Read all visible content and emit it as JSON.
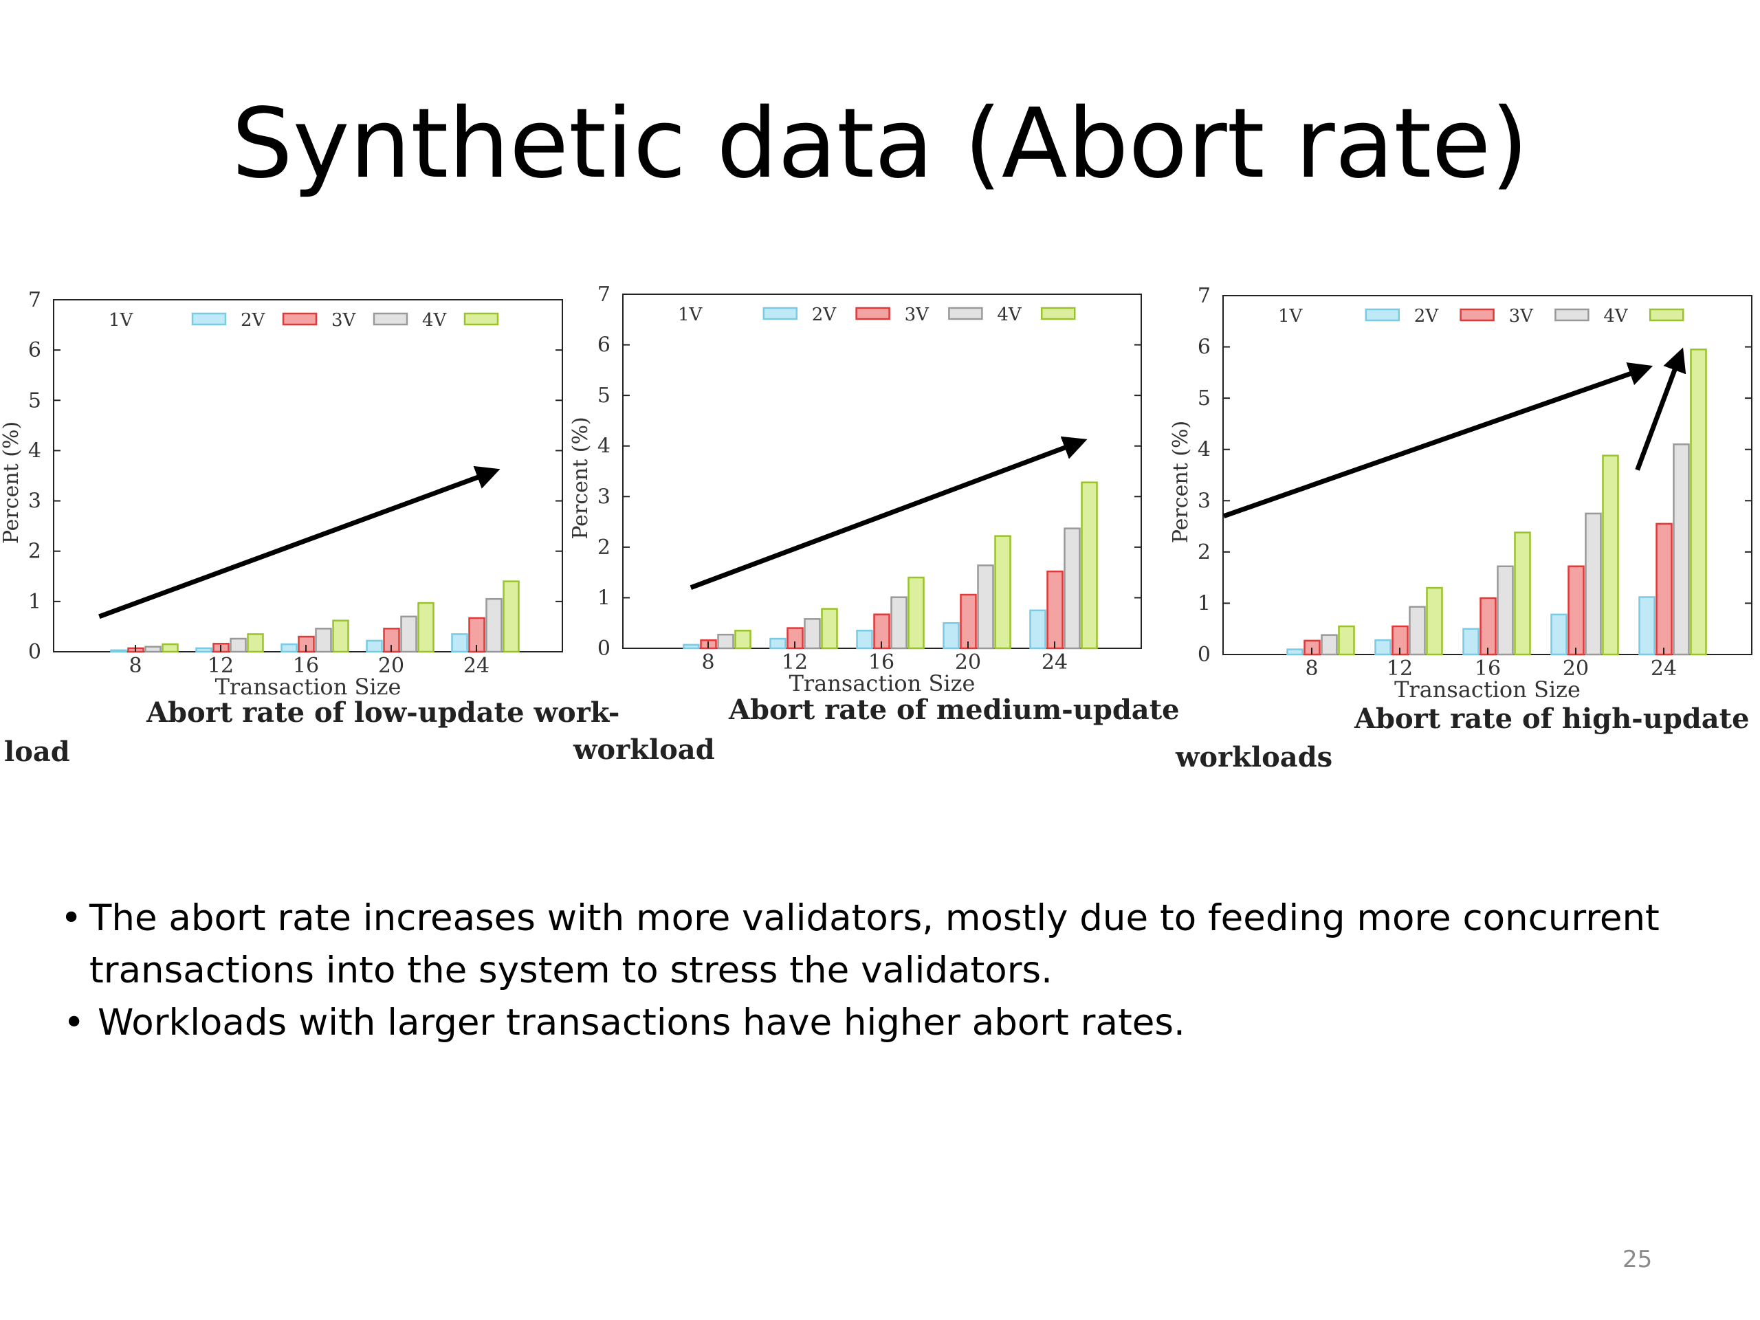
{
  "slide": {
    "title": "Synthetic data (Abort rate)",
    "page_number": "25"
  },
  "bullets": [
    {
      "marker": "•",
      "text": "The abort rate increases with more validators, mostly due to feeding more concurrent transactions into the system to stress the validators."
    },
    {
      "marker": "•",
      "text": "Workloads with larger transactions have higher abort rates."
    }
  ],
  "colors": {
    "1V": "#ffffff",
    "2V": "#bfe9f6",
    "3V": "#f4a3a3",
    "4V": "#e2e2e2",
    "5V": "#dbef9f",
    "2V_stroke": "#79cbe3",
    "3V_stroke": "#e0393a",
    "4V_stroke": "#999999",
    "5V_stroke": "#9ac22b"
  },
  "chart_data": [
    {
      "type": "bar",
      "caption_lines": [
        "Abort rate of low-update work-",
        "load"
      ],
      "xlabel": "Transaction Size",
      "ylabel": "Percent (%)",
      "ylim": [
        0,
        7
      ],
      "yticks": [
        "0",
        "1",
        "2",
        "3",
        "4",
        "5",
        "6",
        "7"
      ],
      "categories": [
        "8",
        "12",
        "16",
        "20",
        "24"
      ],
      "legend_labels": [
        "1V",
        "2V",
        "3V",
        "4V",
        ""
      ],
      "legend": "top",
      "series": [
        {
          "values": [
            0.0,
            0.0,
            0.0,
            0.0,
            0.0
          ]
        },
        {
          "values": [
            0.03,
            0.07,
            0.15,
            0.22,
            0.35
          ]
        },
        {
          "values": [
            0.07,
            0.16,
            0.3,
            0.46,
            0.67
          ]
        },
        {
          "values": [
            0.1,
            0.26,
            0.46,
            0.7,
            1.05
          ]
        },
        {
          "values": [
            0.15,
            0.35,
            0.62,
            0.97,
            1.4
          ]
        }
      ],
      "trend_arrows": [
        {
          "from": [
            6.3,
            0.7
          ],
          "to": [
            24.9,
            3.6
          ]
        }
      ]
    },
    {
      "type": "bar",
      "caption_lines": [
        "Abort rate of medium-update",
        "workload"
      ],
      "xlabel": "Transaction Size",
      "ylabel": "Percent (%)",
      "ylim": [
        0,
        7
      ],
      "yticks": [
        "0",
        "1",
        "2",
        "3",
        "4",
        "5",
        "6",
        "7"
      ],
      "categories": [
        "8",
        "12",
        "16",
        "20",
        "24"
      ],
      "legend_labels": [
        "1V",
        "2V",
        "3V",
        "4V",
        ""
      ],
      "legend": "top",
      "series": [
        {
          "values": [
            0.0,
            0.0,
            0.0,
            0.0,
            0.0
          ]
        },
        {
          "values": [
            0.07,
            0.19,
            0.35,
            0.5,
            0.75
          ]
        },
        {
          "values": [
            0.16,
            0.4,
            0.67,
            1.06,
            1.52
          ]
        },
        {
          "values": [
            0.27,
            0.58,
            1.01,
            1.64,
            2.37
          ]
        },
        {
          "values": [
            0.35,
            0.78,
            1.4,
            2.22,
            3.28
          ]
        }
      ],
      "trend_arrows": [
        {
          "from": [
            7.2,
            1.2
          ],
          "to": [
            25.3,
            4.1
          ]
        }
      ]
    },
    {
      "type": "bar",
      "caption_lines": [
        "Abort rate of high-update",
        "workloads"
      ],
      "xlabel": "Transaction Size",
      "ylabel": "Percent (%)",
      "ylim": [
        0,
        7
      ],
      "yticks": [
        "0",
        "1",
        "2",
        "3",
        "4",
        "5",
        "6",
        "7"
      ],
      "categories": [
        "8",
        "12",
        "16",
        "20",
        "24"
      ],
      "legend_labels": [
        "1V",
        "2V",
        "3V",
        "4V",
        ""
      ],
      "legend": "top",
      "series": [
        {
          "values": [
            0.0,
            0.0,
            0.0,
            0.0,
            0.0
          ]
        },
        {
          "values": [
            0.1,
            0.28,
            0.5,
            0.78,
            1.12
          ]
        },
        {
          "values": [
            0.27,
            0.55,
            1.1,
            1.72,
            2.55
          ]
        },
        {
          "values": [
            0.38,
            0.93,
            1.72,
            2.75,
            4.1
          ]
        },
        {
          "values": [
            0.55,
            1.3,
            2.38,
            3.88,
            5.95
          ]
        }
      ],
      "trend_arrows": [
        {
          "from": [
            4.0,
            2.7
          ],
          "to": [
            23.3,
            5.6
          ]
        },
        {
          "from": [
            22.8,
            3.6
          ],
          "to": [
            24.8,
            5.9
          ]
        }
      ]
    }
  ]
}
